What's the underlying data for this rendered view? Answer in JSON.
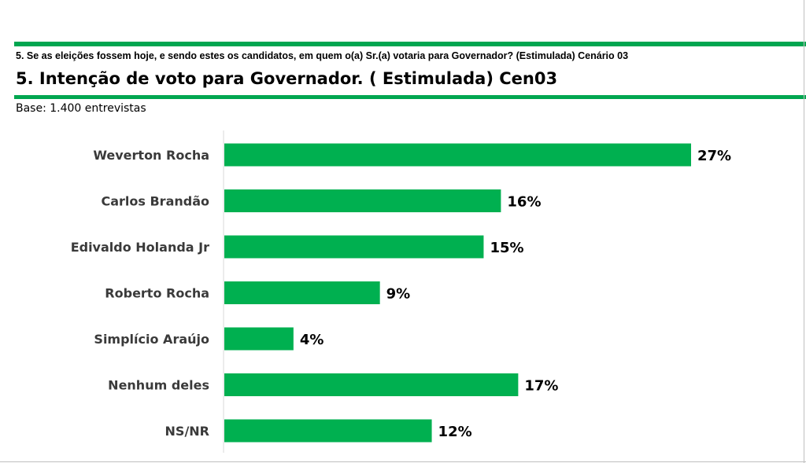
{
  "header": {
    "question": "5. Se as eleições fossem hoje, e sendo estes os candidatos, em quem o(a) Sr.(a) votaria para Governador? (Estimulada) Cenário 03",
    "title": "5. Intenção de voto para Governador. ( Estimulada) Cen03",
    "base": "Base: 1.400 entrevistas"
  },
  "colors": {
    "accent": "#00a650",
    "bar": "#00b050"
  },
  "chart_data": {
    "type": "bar",
    "orientation": "horizontal",
    "categories": [
      "Weverton Rocha",
      "Carlos Brandão",
      "Edivaldo Holanda Jr",
      "Roberto Rocha",
      "Simplício Araújo",
      "Nenhum deles",
      "NS/NR"
    ],
    "values": [
      27,
      16,
      15,
      9,
      4,
      17,
      12
    ],
    "value_labels": [
      "27%",
      "16%",
      "15%",
      "9%",
      "4%",
      "17%",
      "12%"
    ],
    "xlim": [
      0,
      27
    ],
    "grid": false,
    "legend": false
  }
}
